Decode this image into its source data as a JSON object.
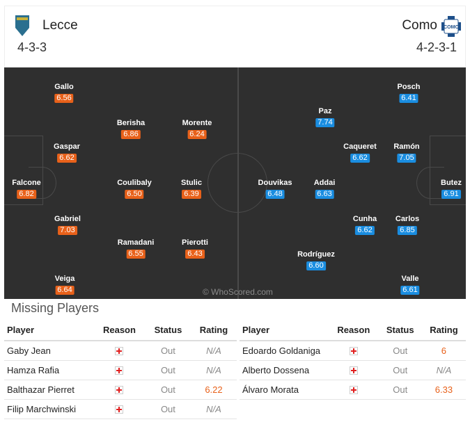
{
  "home": {
    "name": "Lecce",
    "formation": "4-3-3",
    "color": "#e8611a",
    "players": [
      {
        "name": "Gallo",
        "rating": "6.56"
      },
      {
        "name": "Berisha",
        "rating": "6.86"
      },
      {
        "name": "Morente",
        "rating": "6.24"
      },
      {
        "name": "Gaspar",
        "rating": "6.62"
      },
      {
        "name": "Falcone",
        "rating": "6.82"
      },
      {
        "name": "Coulibaly",
        "rating": "6.50"
      },
      {
        "name": "Stulic",
        "rating": "6.39"
      },
      {
        "name": "Gabriel",
        "rating": "7.03"
      },
      {
        "name": "Ramadani",
        "rating": "6.55"
      },
      {
        "name": "Pierotti",
        "rating": "6.43"
      },
      {
        "name": "Veiga",
        "rating": "6.64"
      }
    ]
  },
  "away": {
    "name": "Como",
    "formation": "4-2-3-1",
    "color": "#1a8de0",
    "players": [
      {
        "name": "Posch",
        "rating": "6.41"
      },
      {
        "name": "Paz",
        "rating": "7.74"
      },
      {
        "name": "Caqueret",
        "rating": "6.62"
      },
      {
        "name": "Ramón",
        "rating": "7.05"
      },
      {
        "name": "Douvikas",
        "rating": "6.48"
      },
      {
        "name": "Addai",
        "rating": "6.63"
      },
      {
        "name": "Butez",
        "rating": "6.91"
      },
      {
        "name": "Cunha",
        "rating": "6.62"
      },
      {
        "name": "Carlos",
        "rating": "6.85"
      },
      {
        "name": "Rodríguez",
        "rating": "6.60"
      },
      {
        "name": "Valle",
        "rating": "6.61"
      }
    ]
  },
  "watermark": "© WhoScored.com",
  "missing": {
    "title": "Missing Players",
    "headers": [
      "Player",
      "Reason",
      "Status",
      "Rating"
    ],
    "home": [
      {
        "player": "Gaby Jean",
        "status": "Out",
        "rating": "N/A"
      },
      {
        "player": "Hamza Rafia",
        "status": "Out",
        "rating": "N/A"
      },
      {
        "player": "Balthazar Pierret",
        "status": "Out",
        "rating": "6.22"
      },
      {
        "player": "Filip Marchwinski",
        "status": "Out",
        "rating": "N/A"
      }
    ],
    "away": [
      {
        "player": "Edoardo Goldaniga",
        "status": "Out",
        "rating": "6"
      },
      {
        "player": "Alberto Dossena",
        "status": "Out",
        "rating": "N/A"
      },
      {
        "player": "Álvaro Morata",
        "status": "Out",
        "rating": "6.33"
      }
    ],
    "reason_icon": "injury-cross-icon"
  }
}
